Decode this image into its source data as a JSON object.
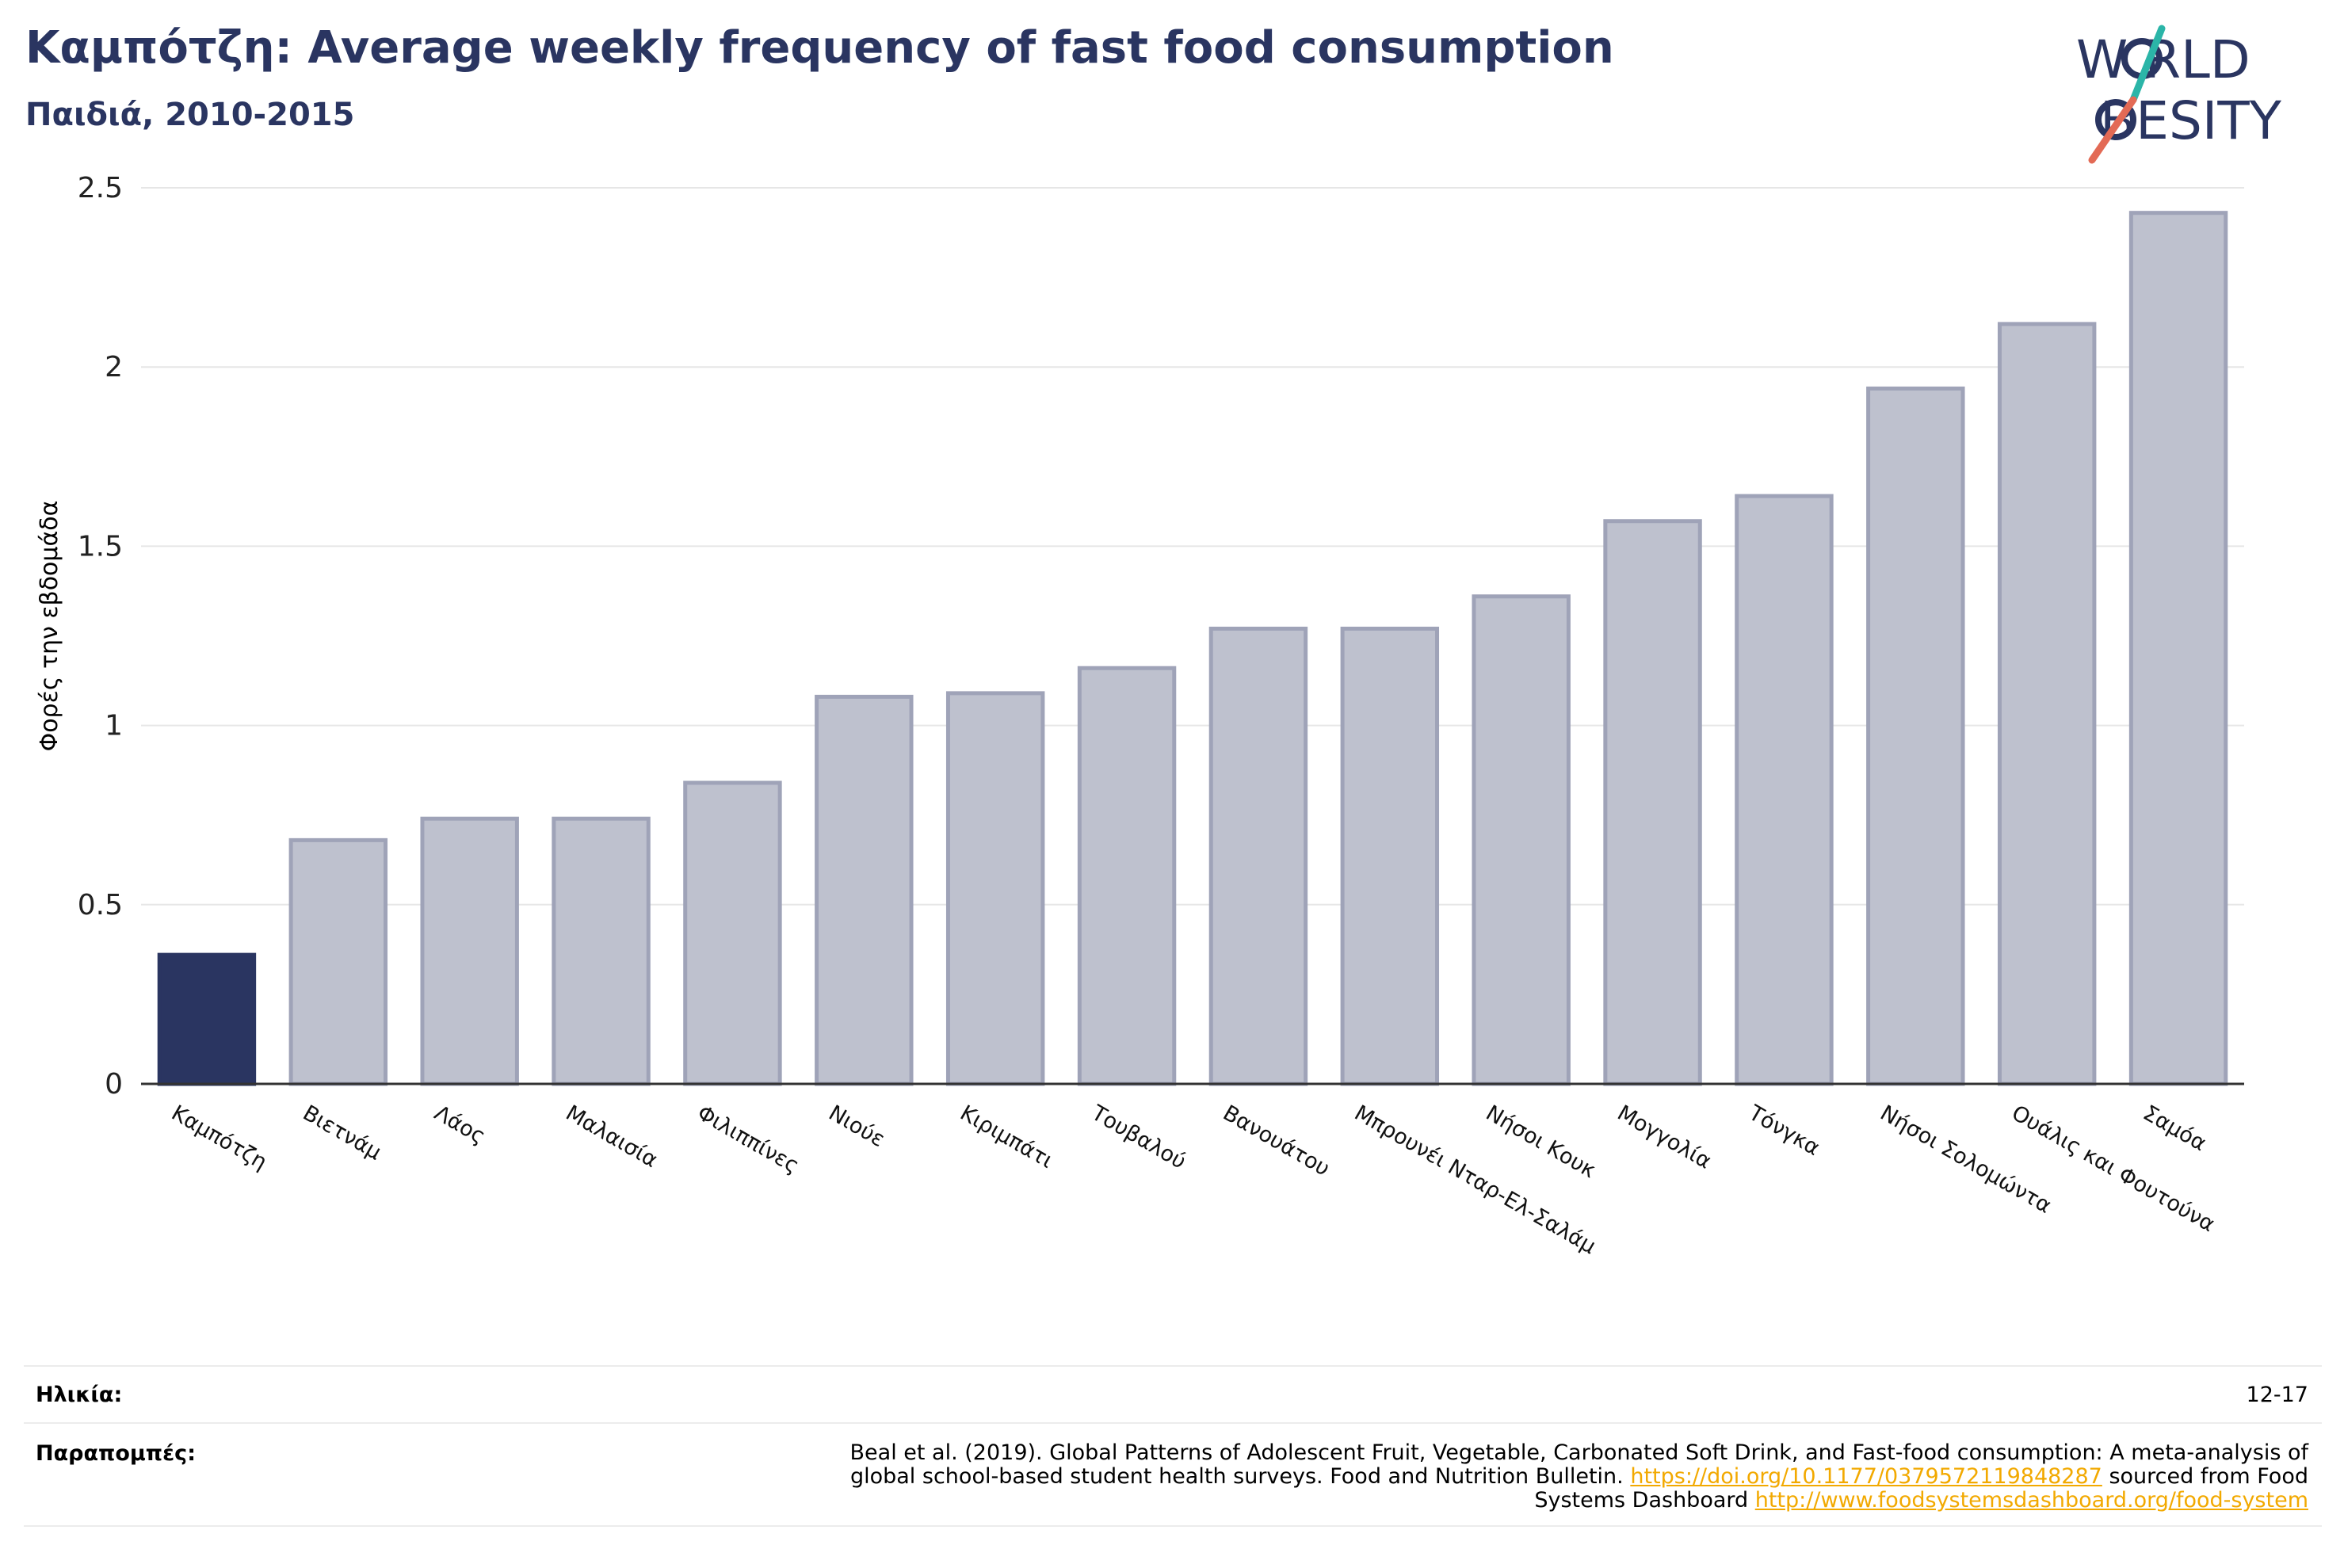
{
  "header": {
    "title": "Καμπότζη: Average weekly frequency of fast food consumption",
    "subtitle": "Παιδιά, 2010-2015"
  },
  "logo": {
    "line1": "W  RLD",
    "line2": "BESITY",
    "accent_teal": "#2bb5a8",
    "accent_red": "#e36a55",
    "text_color": "#2a3561"
  },
  "chart_data": {
    "type": "bar",
    "title": "Καμπότζη: Average weekly frequency of fast food consumption",
    "subtitle": "Παιδιά, 2010-2015",
    "xlabel": "",
    "ylabel": "Φορές την εβδομάδα",
    "ylim": [
      0,
      2.5
    ],
    "yticks": [
      0,
      0.5,
      1,
      1.5,
      2,
      2.5
    ],
    "ytick_labels": [
      "0",
      "0.5",
      "1",
      "1.5",
      "2",
      "2.5"
    ],
    "grid": true,
    "categories": [
      "Καμπότζη",
      "Βιετνάμ",
      "Λάος",
      "Μαλαισία",
      "Φιλιππίνες",
      "Νιούε",
      "Κιριμπάτι",
      "Τουβαλού",
      "Βανουάτου",
      "Μπρουνέι Νταρ-Ελ-Σαλάμ",
      "Νήσοι Κουκ",
      "Μογγολία",
      "Τόνγκα",
      "Νήσοι Σολομώντα",
      "Ουάλις και Φουτούνα",
      "Σαμόα"
    ],
    "values": [
      0.36,
      0.68,
      0.74,
      0.74,
      0.84,
      1.08,
      1.09,
      1.16,
      1.27,
      1.27,
      1.36,
      1.57,
      1.64,
      1.94,
      2.12,
      2.43
    ],
    "highlight_index": 0,
    "highlight_color": "#2a3561",
    "bar_color": "#bec1ce",
    "bar_edge_color": "#9fa3b8"
  },
  "meta": {
    "age_label": "Ηλικία:",
    "age_value": "12-17",
    "refs_label": "Παραπομπές:",
    "refs_line1": "Beal et al. (2019). Global Patterns of Adolescent Fruit, Vegetable, Carbonated Soft Drink, and Fast-food consumption: A meta-analysis of",
    "refs_line2_pre": "global school-based student health surveys. Food and Nutrition Bulletin. ",
    "refs_link1": "https://doi.org/10.1177/0379572119848287",
    "refs_line2_post": " sourced from Food",
    "refs_line3_pre": "Systems Dashboard ",
    "refs_link2": "http://www.foodsystemsdashboard.org/food-system"
  }
}
